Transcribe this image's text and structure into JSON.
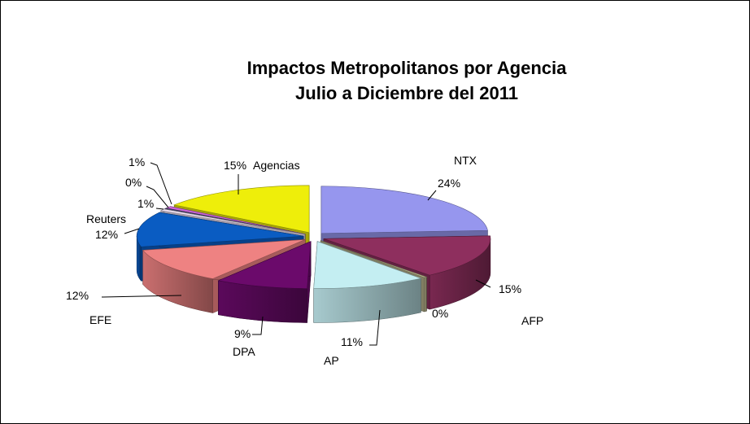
{
  "chart_data": {
    "type": "pie",
    "title": "Impactos Metropolitanos por Agencia",
    "subtitle": "Julio a Diciembre  del 2011",
    "slices": [
      {
        "name": "NTX",
        "value": 24,
        "percent": "24%",
        "color": "#9696EE"
      },
      {
        "name": "AFP",
        "value": 15,
        "percent": "15%",
        "color": "#8E2F5E"
      },
      {
        "name": "",
        "value": 0.3,
        "percent": "0%",
        "color": "#B8B48C"
      },
      {
        "name": "AP",
        "value": 11,
        "percent": "11%",
        "color": "#C4EEF2"
      },
      {
        "name": "DPA",
        "value": 9,
        "percent": "9%",
        "color": "#6B0A6B"
      },
      {
        "name": "EFE",
        "value": 12,
        "percent": "12%",
        "color": "#EE8282"
      },
      {
        "name": "Reuters",
        "value": 12,
        "percent": "12%",
        "color": "#0A5CC2"
      },
      {
        "name": "",
        "value": 0.6,
        "percent": "1%",
        "color": "#F0E2F4"
      },
      {
        "name": "",
        "value": 0.3,
        "percent": "0%",
        "color": "#4A4A74"
      },
      {
        "name": "",
        "value": 0.7,
        "percent": "1%",
        "color": "#CC66D6"
      },
      {
        "name": "Agencias",
        "value": 15,
        "percent": "15%",
        "color": "#EEEE0A"
      }
    ]
  }
}
